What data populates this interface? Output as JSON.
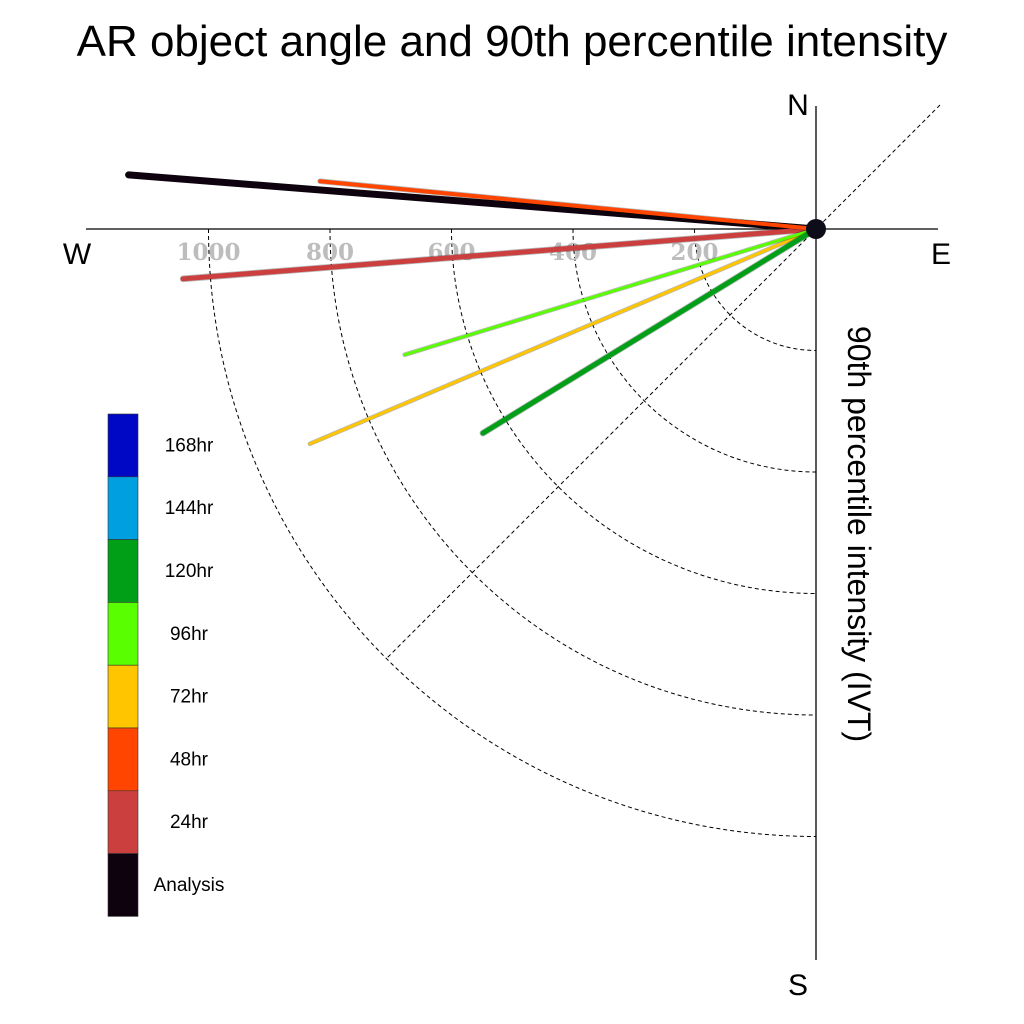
{
  "chart_data": {
    "type": "polar-quadrant-line",
    "title": "AR object angle and 90th percentile intensity",
    "ylabel": "90th percentile intensity (IVT)",
    "compass": {
      "north": "N",
      "south": "S",
      "east": "E",
      "west": "W"
    },
    "radial_ticks": [
      200,
      400,
      600,
      800,
      1000
    ],
    "radial_tick_labels": [
      "200",
      "400",
      "600",
      "800",
      "1000"
    ],
    "radial_range": [
      0,
      1200
    ],
    "grid": true,
    "legend_position": "left",
    "series": [
      {
        "name": "Analysis",
        "color": "#0d020d",
        "angle_deg": 175.5,
        "intensity": 1135,
        "width": 7
      },
      {
        "name": "24hr",
        "color": "#cc3f3f",
        "angle_deg": 184.5,
        "intensity": 1045,
        "width": 5
      },
      {
        "name": "48hr",
        "color": "#ff4500",
        "angle_deg": 174.5,
        "intensity": 820,
        "width": 4
      },
      {
        "name": "72hr",
        "color": "#ffc600",
        "angle_deg": 203.0,
        "intensity": 905,
        "width": 3
      },
      {
        "name": "96hr",
        "color": "#59ff00",
        "angle_deg": 197.0,
        "intensity": 708,
        "width": 3
      },
      {
        "name": "120hr",
        "color": "#009f17",
        "angle_deg": 211.5,
        "intensity": 643,
        "width": 5
      },
      {
        "name": "144hr",
        "color": "#009fdf",
        "angle_deg": null,
        "intensity": null,
        "width": 0
      },
      {
        "name": "168hr",
        "color": "#0008c5",
        "angle_deg": null,
        "intensity": null,
        "width": 0
      }
    ]
  }
}
